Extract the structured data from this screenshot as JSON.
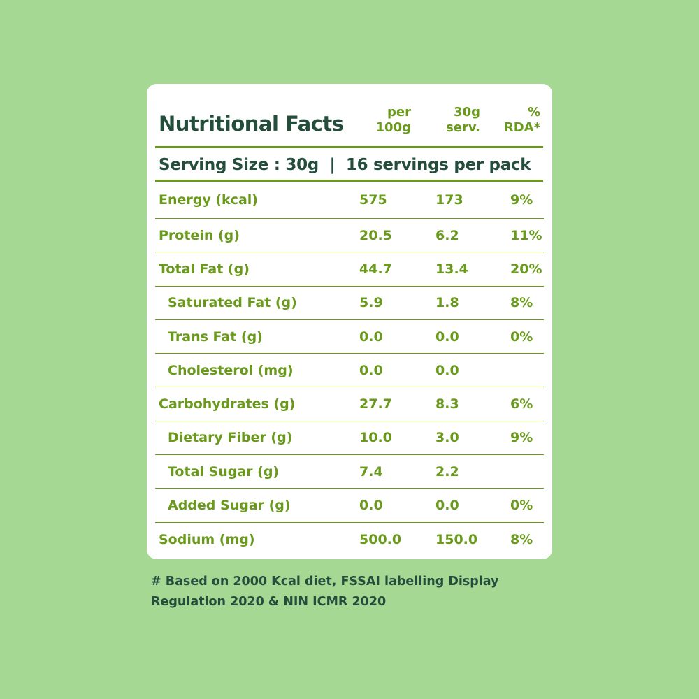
{
  "title": "Nutritional Facts",
  "columns": {
    "per100": [
      "per",
      "100g"
    ],
    "serving": [
      "30g",
      "serv."
    ],
    "rda": [
      "%",
      "RDA*"
    ]
  },
  "serving_text": "Serving Size : 30g  |  16 servings per pack",
  "rows": [
    {
      "name": "Energy (kcal)",
      "per100": "575",
      "serving": "173",
      "rda": "9%",
      "sub": false
    },
    {
      "name": "Protein (g)",
      "per100": "20.5",
      "serving": "6.2",
      "rda": "11%",
      "sub": false
    },
    {
      "name": "Total Fat (g)",
      "per100": "44.7",
      "serving": "13.4",
      "rda": "20%",
      "sub": false
    },
    {
      "name": "Saturated Fat (g)",
      "per100": "5.9",
      "serving": "1.8",
      "rda": "8%",
      "sub": true
    },
    {
      "name": "Trans Fat (g)",
      "per100": "0.0",
      "serving": "0.0",
      "rda": "0%",
      "sub": true
    },
    {
      "name": "Cholesterol (mg)",
      "per100": "0.0",
      "serving": "0.0",
      "rda": "",
      "sub": true
    },
    {
      "name": "Carbohydrates (g)",
      "per100": "27.7",
      "serving": "8.3",
      "rda": "6%",
      "sub": false
    },
    {
      "name": "Dietary Fiber (g)",
      "per100": "10.0",
      "serving": "3.0",
      "rda": "9%",
      "sub": true
    },
    {
      "name": "Total Sugar (g)",
      "per100": "7.4",
      "serving": "2.2",
      "rda": "",
      "sub": true
    },
    {
      "name": "Added Sugar (g)",
      "per100": "0.0",
      "serving": "0.0",
      "rda": "0%",
      "sub": true
    },
    {
      "name": "Sodium (mg)",
      "per100": "500.0",
      "serving": "150.0",
      "rda": "8%",
      "sub": false
    }
  ],
  "footnote": [
    "# Based on 2000 Kcal diet, FSSAI labelling Display",
    "Regulation 2020 & NIN ICMR 2020"
  ],
  "colors": {
    "background": "#a5d993",
    "dark_text": "#254d3c",
    "accent": "#6a9a1c"
  }
}
